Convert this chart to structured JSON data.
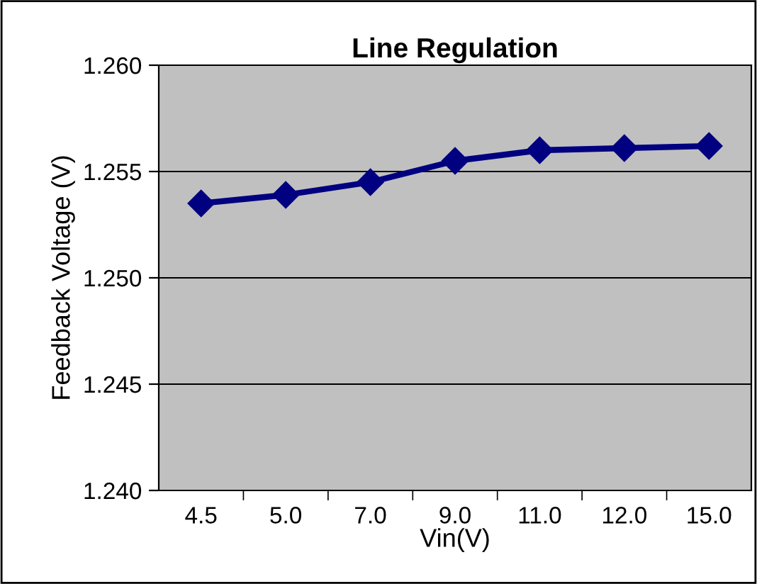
{
  "chart_data": {
    "type": "line",
    "title": "Line Regulation",
    "xlabel": "Vin(V)",
    "ylabel": "Feedback Voltage (V)",
    "categories": [
      "4.5",
      "5.0",
      "7.0",
      "9.0",
      "11.0",
      "12.0",
      "15.0"
    ],
    "series": [
      {
        "color": "#000080",
        "values": [
          1.2535,
          1.2539,
          1.2545,
          1.2555,
          1.256,
          1.2561,
          1.2562
        ]
      }
    ],
    "ylim": [
      1.24,
      1.26
    ],
    "yticks": [
      {
        "value": 1.24,
        "label": "1.240"
      },
      {
        "value": 1.245,
        "label": "1.245"
      },
      {
        "value": 1.25,
        "label": "1.250"
      },
      {
        "value": 1.255,
        "label": "1.255"
      },
      {
        "value": 1.26,
        "label": "1.260"
      }
    ],
    "grid": "y",
    "legend": false,
    "marker": "diamond",
    "line_style": "solid"
  }
}
